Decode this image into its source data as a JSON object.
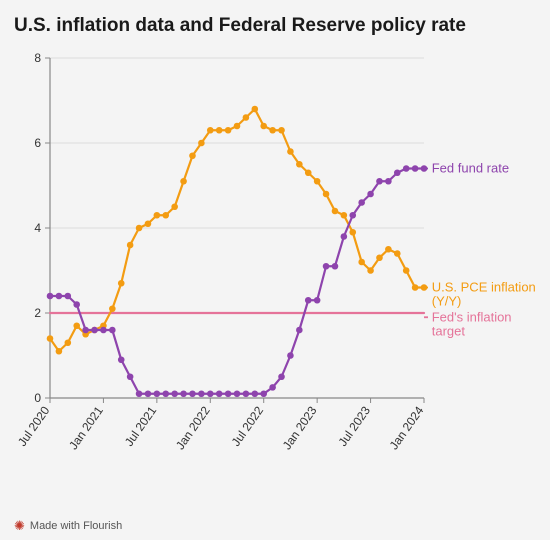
{
  "title": "U.S. inflation data and Federal Reserve policy rate",
  "footer": "Made with Flourish",
  "chart": {
    "type": "line",
    "background_color": "#f4f4f4",
    "axis_color": "#888888",
    "grid_color": "#dddddd",
    "text_color": "#333333",
    "tick_fontsize": 12,
    "label_fontsize": 13,
    "x_tick_rotation": -55,
    "ylim": [
      0,
      8
    ],
    "ytick_step": 2,
    "x_labels": [
      "Jul 2020",
      "Jan 2021",
      "Jul 2021",
      "Jan 2022",
      "Jul 2022",
      "Jan 2023",
      "Jul 2023",
      "Jan 2024"
    ],
    "x_label_indices": [
      0,
      6,
      12,
      18,
      24,
      30,
      36,
      42
    ],
    "n_points": 43,
    "line_width": 2.2,
    "marker_radius": 3.3,
    "series": {
      "pce": {
        "label": "U.S. PCE inflation (Y/Y)",
        "color": "#f39c12",
        "label_x_frac": 1.01,
        "label_y": 2.6,
        "values": [
          1.4,
          1.1,
          1.3,
          1.7,
          1.5,
          1.6,
          1.7,
          2.1,
          2.7,
          3.6,
          4.0,
          4.1,
          4.3,
          4.3,
          4.5,
          5.1,
          5.7,
          6.0,
          6.3,
          6.3,
          6.3,
          6.4,
          6.6,
          6.8,
          6.4,
          6.3,
          6.3,
          5.8,
          5.5,
          5.3,
          5.1,
          4.8,
          4.4,
          4.3,
          3.9,
          3.2,
          3.0,
          3.3,
          3.5,
          3.4,
          3.0,
          2.6,
          2.6
        ]
      },
      "fed_rate": {
        "label": "Fed fund rate",
        "color": "#8e44ad",
        "label_x_frac": 1.01,
        "label_y": 5.4,
        "values": [
          2.4,
          2.4,
          2.4,
          2.2,
          1.6,
          1.6,
          1.6,
          1.6,
          0.9,
          0.5,
          0.1,
          0.1,
          0.1,
          0.1,
          0.1,
          0.1,
          0.1,
          0.1,
          0.1,
          0.1,
          0.1,
          0.1,
          0.1,
          0.1,
          0.1,
          0.25,
          0.5,
          1.0,
          1.6,
          2.3,
          2.3,
          3.1,
          3.1,
          3.8,
          4.3,
          4.6,
          4.8,
          5.1,
          5.1,
          5.3,
          5.4,
          5.4,
          5.4
        ]
      },
      "target": {
        "label": "Fed's inflation target",
        "color": "#e57399",
        "label_x_frac": 1.01,
        "label_y": 1.9,
        "values": [
          2,
          2,
          2,
          2,
          2,
          2,
          2,
          2,
          2,
          2,
          2,
          2,
          2,
          2,
          2,
          2,
          2,
          2,
          2,
          2,
          2,
          2,
          2,
          2,
          2,
          2,
          2,
          2,
          2,
          2,
          2,
          2,
          2,
          2,
          2,
          2,
          2,
          2,
          2,
          2,
          2,
          2,
          2
        ],
        "no_markers": true
      }
    }
  }
}
